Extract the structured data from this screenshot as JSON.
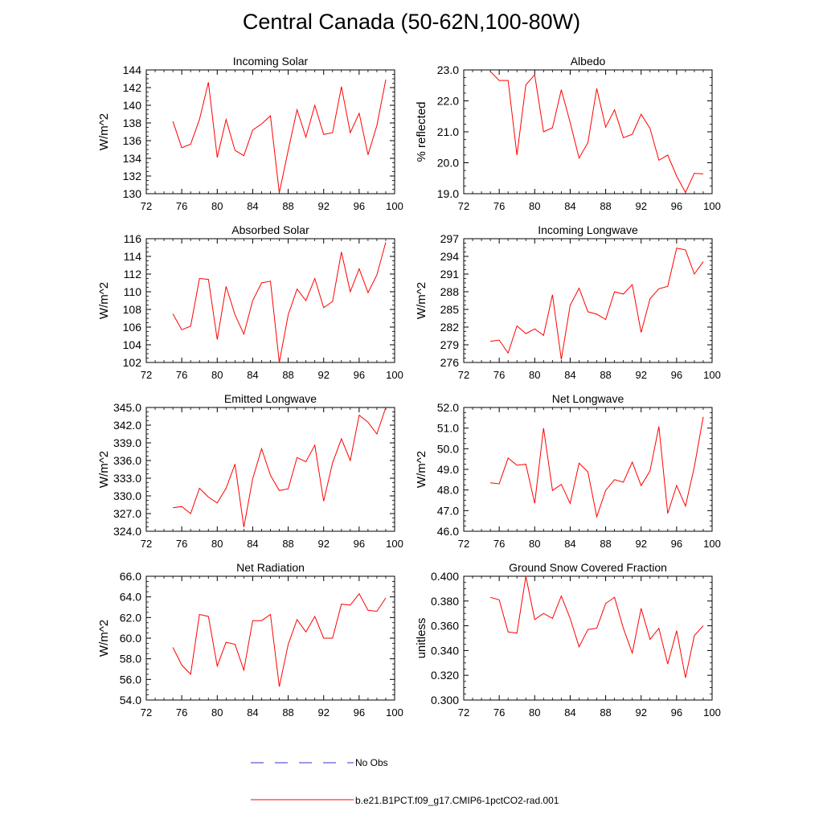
{
  "figure": {
    "title": "Central Canada (50-62N,100-80W)",
    "line_color": "#ff0000",
    "obs_color": "#3333cc"
  },
  "legend": {
    "obs_label": "No Obs",
    "model_label": "b.e21.B1PCT.f09_g17.CMIP6-1pctCO2-rad.001"
  },
  "chart_data": [
    {
      "type": "line",
      "title": "Incoming Solar",
      "ylabel": "W/m^2",
      "xlim": [
        72,
        100
      ],
      "xticks": [
        "72",
        "76",
        "80",
        "84",
        "88",
        "92",
        "96",
        "100"
      ],
      "ylim": [
        130,
        144
      ],
      "yticks": [
        "130",
        "132",
        "134",
        "136",
        "138",
        "140",
        "142",
        "144"
      ],
      "series": [
        {
          "x": [
            75,
            76,
            77,
            78,
            79,
            80,
            81,
            82,
            83,
            84,
            85,
            86,
            87,
            88,
            89,
            90,
            91,
            92,
            93,
            94,
            95,
            96,
            97,
            98,
            99
          ],
          "values": [
            138.2,
            135.2,
            135.6,
            138.4,
            142.6,
            134.1,
            138.4,
            134.9,
            134.3,
            137.2,
            137.9,
            138.8,
            130.1,
            134.9,
            139.5,
            136.4,
            140.0,
            136.7,
            136.9,
            142.1,
            136.9,
            139.1,
            134.4,
            137.7,
            142.9
          ]
        }
      ]
    },
    {
      "type": "line",
      "title": "Albedo",
      "ylabel": "% reflected",
      "xlim": [
        72,
        100
      ],
      "xticks": [
        "72",
        "76",
        "80",
        "84",
        "88",
        "92",
        "96",
        "100"
      ],
      "ylim": [
        19.0,
        23.0
      ],
      "yticks": [
        "19.0",
        "20.0",
        "21.0",
        "22.0",
        "23.0"
      ],
      "series": [
        {
          "x": [
            75,
            76,
            77,
            78,
            79,
            80,
            81,
            82,
            83,
            84,
            85,
            86,
            87,
            88,
            89,
            90,
            91,
            92,
            93,
            94,
            95,
            96,
            97,
            98,
            99
          ],
          "values": [
            22.95,
            22.66,
            22.66,
            20.25,
            22.52,
            22.84,
            21.0,
            21.13,
            22.36,
            21.3,
            20.15,
            20.65,
            22.4,
            21.15,
            21.71,
            20.81,
            20.92,
            21.57,
            21.11,
            20.08,
            20.25,
            19.57,
            19.04,
            19.66,
            19.64
          ]
        }
      ]
    },
    {
      "type": "line",
      "title": "Absorbed Solar",
      "ylabel": "W/m^2",
      "xlim": [
        72,
        100
      ],
      "xticks": [
        "72",
        "76",
        "80",
        "84",
        "88",
        "92",
        "96",
        "100"
      ],
      "ylim": [
        102,
        116
      ],
      "yticks": [
        "102",
        "104",
        "106",
        "108",
        "110",
        "112",
        "114",
        "116"
      ],
      "series": [
        {
          "x": [
            75,
            76,
            77,
            78,
            79,
            80,
            81,
            82,
            83,
            84,
            85,
            86,
            87,
            88,
            89,
            90,
            91,
            92,
            93,
            94,
            95,
            96,
            97,
            98,
            99
          ],
          "values": [
            107.5,
            105.7,
            106.1,
            111.5,
            111.4,
            104.6,
            110.6,
            107.4,
            105.2,
            109.0,
            111.0,
            111.2,
            102.0,
            107.4,
            110.3,
            109.0,
            111.5,
            108.2,
            108.9,
            114.5,
            110.0,
            112.6,
            109.9,
            111.9,
            115.6
          ]
        }
      ]
    },
    {
      "type": "line",
      "title": "Incoming Longwave",
      "ylabel": "W/m^2",
      "xlim": [
        72,
        100
      ],
      "xticks": [
        "72",
        "76",
        "80",
        "84",
        "88",
        "92",
        "96",
        "100"
      ],
      "ylim": [
        276,
        297
      ],
      "yticks": [
        "276",
        "279",
        "282",
        "285",
        "288",
        "291",
        "294",
        "297"
      ],
      "series": [
        {
          "x": [
            75,
            76,
            77,
            78,
            79,
            80,
            81,
            82,
            83,
            84,
            85,
            86,
            87,
            88,
            89,
            90,
            91,
            92,
            93,
            94,
            95,
            96,
            97,
            98,
            99
          ],
          "values": [
            279.6,
            279.8,
            277.6,
            282.2,
            280.9,
            281.7,
            280.6,
            287.5,
            276.5,
            285.7,
            288.6,
            284.6,
            284.2,
            283.3,
            288.0,
            287.6,
            289.2,
            281.1,
            286.8,
            288.5,
            288.9,
            295.4,
            295.1,
            291.0,
            293.1
          ]
        }
      ]
    },
    {
      "type": "line",
      "title": "Emitted Longwave",
      "ylabel": "W/m^2",
      "xlim": [
        72,
        100
      ],
      "xticks": [
        "72",
        "76",
        "80",
        "84",
        "88",
        "92",
        "96",
        "100"
      ],
      "ylim": [
        324.0,
        345.0
      ],
      "yticks": [
        "324.0",
        "327.0",
        "330.0",
        "333.0",
        "336.0",
        "339.0",
        "342.0",
        "345.0"
      ],
      "series": [
        {
          "x": [
            75,
            76,
            77,
            78,
            79,
            80,
            81,
            82,
            83,
            84,
            85,
            86,
            87,
            88,
            89,
            90,
            91,
            92,
            93,
            94,
            95,
            96,
            97,
            98,
            99
          ],
          "values": [
            328.0,
            328.2,
            327.0,
            331.3,
            329.8,
            328.8,
            331.3,
            335.4,
            324.7,
            332.9,
            338.0,
            333.5,
            330.9,
            331.2,
            336.5,
            335.8,
            338.6,
            329.1,
            335.6,
            339.7,
            336.0,
            343.7,
            342.5,
            340.5,
            345.0
          ]
        }
      ]
    },
    {
      "type": "line",
      "title": "Net Longwave",
      "ylabel": "W/m^2",
      "xlim": [
        72,
        100
      ],
      "xticks": [
        "72",
        "76",
        "80",
        "84",
        "88",
        "92",
        "96",
        "100"
      ],
      "ylim": [
        46.0,
        52.0
      ],
      "yticks": [
        "46.0",
        "47.0",
        "48.0",
        "49.0",
        "50.0",
        "51.0",
        "52.0"
      ],
      "series": [
        {
          "x": [
            75,
            76,
            77,
            78,
            79,
            80,
            81,
            82,
            83,
            84,
            85,
            86,
            87,
            88,
            89,
            90,
            91,
            92,
            93,
            94,
            95,
            96,
            97,
            98,
            99
          ],
          "values": [
            48.35,
            48.3,
            49.55,
            49.2,
            49.25,
            47.35,
            51.0,
            47.98,
            48.27,
            47.35,
            49.3,
            48.88,
            46.7,
            47.98,
            48.5,
            48.38,
            49.35,
            48.21,
            48.93,
            51.08,
            46.86,
            48.22,
            47.22,
            49.12,
            51.55
          ]
        }
      ]
    },
    {
      "type": "line",
      "title": "Net Radiation",
      "ylabel": "W/m^2",
      "xlim": [
        72,
        100
      ],
      "xticks": [
        "72",
        "76",
        "80",
        "84",
        "88",
        "92",
        "96",
        "100"
      ],
      "ylim": [
        54.0,
        66.0
      ],
      "yticks": [
        "54.0",
        "56.0",
        "58.0",
        "60.0",
        "62.0",
        "64.0",
        "66.0"
      ],
      "series": [
        {
          "x": [
            75,
            76,
            77,
            78,
            79,
            80,
            81,
            82,
            83,
            84,
            85,
            86,
            87,
            88,
            89,
            90,
            91,
            92,
            93,
            94,
            95,
            96,
            97,
            98,
            99
          ],
          "values": [
            59.1,
            57.4,
            56.5,
            62.3,
            62.1,
            57.3,
            59.6,
            59.4,
            56.9,
            61.7,
            61.7,
            62.3,
            55.3,
            59.4,
            61.8,
            60.6,
            62.1,
            60.0,
            60.0,
            63.3,
            63.2,
            64.3,
            62.7,
            62.6,
            63.9
          ]
        }
      ]
    },
    {
      "type": "line",
      "title": "Ground Snow Covered Fraction",
      "ylabel": "unitless",
      "xlim": [
        72,
        100
      ],
      "xticks": [
        "72",
        "76",
        "80",
        "84",
        "88",
        "92",
        "96",
        "100"
      ],
      "ylim": [
        0.3,
        0.4
      ],
      "yticks": [
        "0.300",
        "0.320",
        "0.340",
        "0.360",
        "0.380",
        "0.400"
      ],
      "series": [
        {
          "x": [
            75,
            76,
            77,
            78,
            79,
            80,
            81,
            82,
            83,
            84,
            85,
            86,
            87,
            88,
            89,
            90,
            91,
            92,
            93,
            94,
            95,
            96,
            97,
            98,
            99
          ],
          "values": [
            0.383,
            0.381,
            0.355,
            0.354,
            0.4,
            0.365,
            0.37,
            0.366,
            0.384,
            0.366,
            0.343,
            0.357,
            0.358,
            0.378,
            0.383,
            0.358,
            0.338,
            0.374,
            0.349,
            0.358,
            0.329,
            0.356,
            0.318,
            0.352,
            0.36
          ]
        }
      ]
    }
  ]
}
